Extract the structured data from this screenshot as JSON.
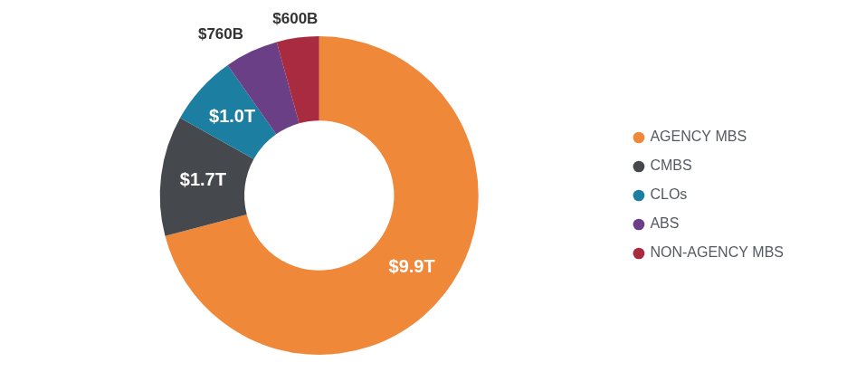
{
  "chart_data": {
    "type": "doughnut",
    "categories": [
      "AGENCY MBS",
      "CMBS",
      "CLOs",
      "ABS",
      "NON-AGENCY MBS"
    ],
    "values": [
      9900,
      1700,
      1000,
      760,
      600
    ],
    "value_labels": [
      "$9.9T",
      "$1.7T",
      "$1.0T",
      "$760B",
      "$600B"
    ],
    "colors": [
      "#f0883a",
      "#45494d",
      "#1c7ea0",
      "#6a3f86",
      "#a82b3f"
    ],
    "data_labels": true,
    "legend": "right"
  }
}
